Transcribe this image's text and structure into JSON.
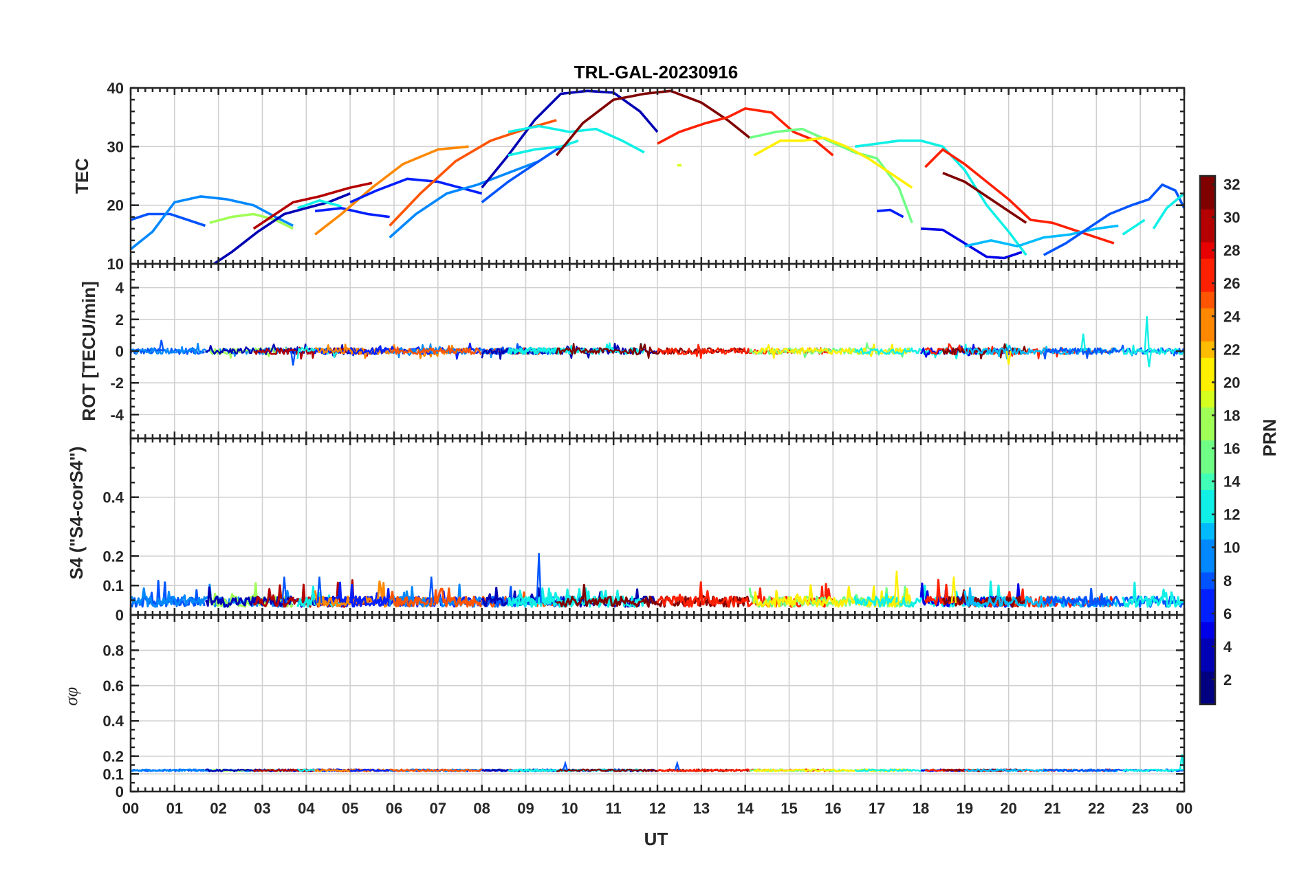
{
  "title": "TRL-GAL-20230916",
  "x_axis": {
    "label": "UT",
    "tick_labels": [
      "00",
      "01",
      "02",
      "03",
      "04",
      "05",
      "06",
      "07",
      "08",
      "09",
      "10",
      "11",
      "12",
      "13",
      "14",
      "15",
      "16",
      "17",
      "18",
      "19",
      "20",
      "21",
      "22",
      "23",
      "00"
    ]
  },
  "colorbar": {
    "label": "PRN",
    "range": [
      1,
      32
    ],
    "tick_labels": [
      "2",
      "4",
      "6",
      "8",
      "10",
      "12",
      "14",
      "16",
      "18",
      "20",
      "22",
      "24",
      "26",
      "28",
      "30",
      "32"
    ],
    "colors": [
      "#000080",
      "#0000b4",
      "#0000e8",
      "#0020ff",
      "#0054ff",
      "#0088ff",
      "#00bcff",
      "#10f0e6",
      "#40ffb6",
      "#70ff86",
      "#a0ff56",
      "#d6ff20",
      "#fff000",
      "#ffbc00",
      "#ff8800",
      "#ff5400",
      "#ff2000",
      "#e80000",
      "#b40000",
      "#800000"
    ]
  },
  "chart_data": [
    {
      "panel": "TEC",
      "type": "line",
      "ylabel": "TEC",
      "xlim": [
        0,
        24
      ],
      "ylim": [
        10,
        40
      ],
      "yticks": [
        "10",
        "20",
        "30",
        "40"
      ],
      "series": [
        {
          "prn": 8,
          "x": [
            0.0,
            0.4,
            0.9,
            1.3,
            1.7
          ],
          "y": [
            17.5,
            18.5,
            18.5,
            17.5,
            16.5
          ]
        },
        {
          "prn": 10,
          "x": [
            0.0,
            0.5,
            1.0,
            1.6,
            2.2,
            2.8,
            3.3,
            3.7
          ],
          "y": [
            12.5,
            15.5,
            20.5,
            21.5,
            21.0,
            20.0,
            18.0,
            16.5
          ]
        },
        {
          "prn": 17,
          "x": [
            1.8,
            2.3,
            2.8,
            3.3,
            3.7
          ],
          "y": [
            17.0,
            18.0,
            18.5,
            17.5,
            16.0
          ]
        },
        {
          "prn": 4,
          "x": [
            1.7,
            2.3,
            2.9,
            3.5,
            4.0,
            4.5,
            5.0
          ],
          "y": [
            9.0,
            12.0,
            15.5,
            18.5,
            19.5,
            20.5,
            22.0
          ]
        },
        {
          "prn": 30,
          "x": [
            2.8,
            3.3,
            3.7,
            4.3,
            5.0,
            5.5
          ],
          "y": [
            16.0,
            18.5,
            20.5,
            21.5,
            23.0,
            23.8
          ]
        },
        {
          "prn": 13,
          "x": [
            3.8,
            4.3,
            4.8
          ],
          "y": [
            19.5,
            20.8,
            19.8
          ]
        },
        {
          "prn": 7,
          "x": [
            4.2,
            4.8,
            5.4,
            5.9
          ],
          "y": [
            19.0,
            19.5,
            18.5,
            18.0
          ]
        },
        {
          "prn": 24,
          "x": [
            4.2,
            4.8,
            5.5,
            6.2,
            7.0,
            7.7
          ],
          "y": [
            15.0,
            18.5,
            23.0,
            27.0,
            29.5,
            30.0
          ]
        },
        {
          "prn": 6,
          "x": [
            5.0,
            5.6,
            6.3,
            7.0,
            7.6,
            8.0
          ],
          "y": [
            20.5,
            22.5,
            24.5,
            24.0,
            22.8,
            22.0
          ]
        },
        {
          "prn": 10,
          "x": [
            5.9,
            6.5,
            7.2,
            7.9,
            8.6,
            9.3
          ],
          "y": [
            14.5,
            18.5,
            22.0,
            23.5,
            25.5,
            27.5
          ]
        },
        {
          "prn": 25,
          "x": [
            5.9,
            6.6,
            7.4,
            8.2,
            9.0,
            9.7
          ],
          "y": [
            16.5,
            22.0,
            27.5,
            31.0,
            33.0,
            34.5
          ]
        },
        {
          "prn": 8,
          "x": [
            8.0,
            8.6,
            9.2,
            9.7,
            10.0
          ],
          "y": [
            20.5,
            24.0,
            27.0,
            29.5,
            30.5
          ]
        },
        {
          "prn": 4,
          "x": [
            8.0,
            8.6,
            9.2,
            9.8,
            10.4,
            11.0,
            11.6,
            12.0
          ],
          "y": [
            23.0,
            28.5,
            34.5,
            39.0,
            39.5,
            39.2,
            36.0,
            32.5
          ]
        },
        {
          "prn": 12,
          "x": [
            8.6,
            9.2,
            9.8,
            10.2
          ],
          "y": [
            28.5,
            29.5,
            30.0,
            31.0
          ]
        },
        {
          "prn": 13,
          "x": [
            8.6,
            9.3,
            10.0,
            10.6,
            11.2,
            11.7
          ],
          "y": [
            32.5,
            33.5,
            32.5,
            33.0,
            31.0,
            29.0
          ]
        },
        {
          "prn": 31,
          "x": [
            9.7,
            10.3,
            11.0,
            11.7,
            12.3,
            13.0,
            13.6,
            14.1
          ],
          "y": [
            28.5,
            34.0,
            38.0,
            39.0,
            39.5,
            37.5,
            34.5,
            31.5
          ]
        },
        {
          "prn": 27,
          "x": [
            12.0,
            12.5,
            13.1,
            13.6,
            14.0,
            14.6,
            15.1,
            15.6,
            16.0
          ],
          "y": [
            30.5,
            32.5,
            34.0,
            35.0,
            36.5,
            35.8,
            32.5,
            31.0,
            28.5
          ]
        },
        {
          "prn": 15,
          "x": [
            14.1,
            14.7,
            15.3,
            15.9,
            16.5,
            17.0,
            17.5,
            17.8
          ],
          "y": [
            31.5,
            32.5,
            33.0,
            31.0,
            29.0,
            28.0,
            23.0,
            17.0
          ]
        },
        {
          "prn": 21,
          "x": [
            14.2,
            14.8,
            15.3,
            15.8,
            16.3,
            16.8,
            17.4,
            17.8
          ],
          "y": [
            28.5,
            31.0,
            31.0,
            31.5,
            30.0,
            28.0,
            25.0,
            23.0
          ]
        },
        {
          "prn": 12,
          "x": [
            16.5,
            17.0,
            17.5,
            18.0,
            18.5,
            19.0,
            19.5,
            20.0,
            20.4
          ],
          "y": [
            30.0,
            30.5,
            31.0,
            31.0,
            30.0,
            26.0,
            20.0,
            15.5,
            11.5
          ]
        },
        {
          "prn": 7,
          "x": [
            17.0,
            17.3,
            17.6
          ],
          "y": [
            19.0,
            19.2,
            18.0
          ]
        },
        {
          "prn": 5,
          "x": [
            18.0,
            18.5,
            19.0,
            19.5,
            19.9,
            20.3
          ],
          "y": [
            16.0,
            15.8,
            13.5,
            11.2,
            11.0,
            12.0
          ]
        },
        {
          "prn": 27,
          "x": [
            18.1,
            18.5,
            19.0,
            19.5,
            20.0,
            20.5,
            21.0,
            21.6,
            22.0,
            22.4
          ],
          "y": [
            26.5,
            29.5,
            27.0,
            24.0,
            21.0,
            17.5,
            17.0,
            15.5,
            14.5,
            13.5
          ]
        },
        {
          "prn": 31,
          "x": [
            18.5,
            19.0,
            19.5,
            20.0,
            20.4
          ],
          "y": [
            25.5,
            24.0,
            21.5,
            19.0,
            17.0
          ]
        },
        {
          "prn": 11,
          "x": [
            19.0,
            19.6,
            20.2,
            20.8,
            21.4,
            22.0,
            22.5
          ],
          "y": [
            13.0,
            14.0,
            13.0,
            14.5,
            15.0,
            16.0,
            16.5
          ]
        },
        {
          "prn": 8,
          "x": [
            20.8,
            21.3,
            21.8,
            22.3,
            22.8,
            23.2,
            23.5,
            23.8,
            24.0
          ],
          "y": [
            11.5,
            13.5,
            16.0,
            18.5,
            20.0,
            21.0,
            23.5,
            22.5,
            19.5
          ]
        },
        {
          "prn": 13,
          "x": [
            22.6,
            22.9,
            23.1
          ],
          "y": [
            15.0,
            16.5,
            17.5
          ]
        },
        {
          "prn": 13,
          "x": [
            23.3,
            23.6,
            24.0
          ],
          "y": [
            16.0,
            19.5,
            22.0
          ]
        },
        {
          "prn": 19,
          "x": [
            12.45,
            12.55
          ],
          "y": [
            26.8,
            26.8
          ]
        }
      ]
    },
    {
      "panel": "ROT",
      "type": "line",
      "ylabel": "ROT [TECU/min]",
      "xlim": [
        0,
        24
      ],
      "ylim": [
        -5.5,
        5.5
      ],
      "yticks": [
        "-4",
        "-2",
        "0",
        "2",
        "4"
      ],
      "noise_level": 0.2,
      "spikes": [
        {
          "x": 23.15,
          "y": 2.2
        },
        {
          "x": 3.7,
          "y": -0.9
        },
        {
          "x": 20.0,
          "y": -0.85
        },
        {
          "x": 23.2,
          "y": -1.0
        },
        {
          "x": 21.7,
          "y": 1.1
        },
        {
          "x": 0.7,
          "y": 0.7
        }
      ]
    },
    {
      "panel": "S4",
      "type": "line",
      "ylabel": "S4 (\"S4-corS4\")",
      "xlim": [
        0,
        24
      ],
      "ylim": [
        0,
        0.6
      ],
      "yticks": [
        "0",
        "0.1",
        "0.2",
        "0.4"
      ],
      "baseline": 0.04,
      "spikes": [
        {
          "x": 9.3,
          "y": 0.21
        },
        {
          "x": 17.45,
          "y": 0.15
        },
        {
          "x": 18.75,
          "y": 0.13
        },
        {
          "x": 3.5,
          "y": 0.13
        },
        {
          "x": 4.3,
          "y": 0.13
        },
        {
          "x": 6.85,
          "y": 0.13
        }
      ]
    },
    {
      "panel": "SigmaPhi",
      "type": "line",
      "ylabel": "σφ",
      "xlim": [
        0,
        24
      ],
      "ylim": [
        0,
        1.0
      ],
      "yticks": [
        "0",
        "0.1",
        "0.2",
        "0.4",
        "0.6",
        "0.8"
      ],
      "baseline": 0.12,
      "spikes": [
        {
          "x": 23.95,
          "y": 0.21
        },
        {
          "x": 9.9,
          "y": 0.16
        },
        {
          "x": 12.45,
          "y": 0.16
        }
      ]
    }
  ]
}
